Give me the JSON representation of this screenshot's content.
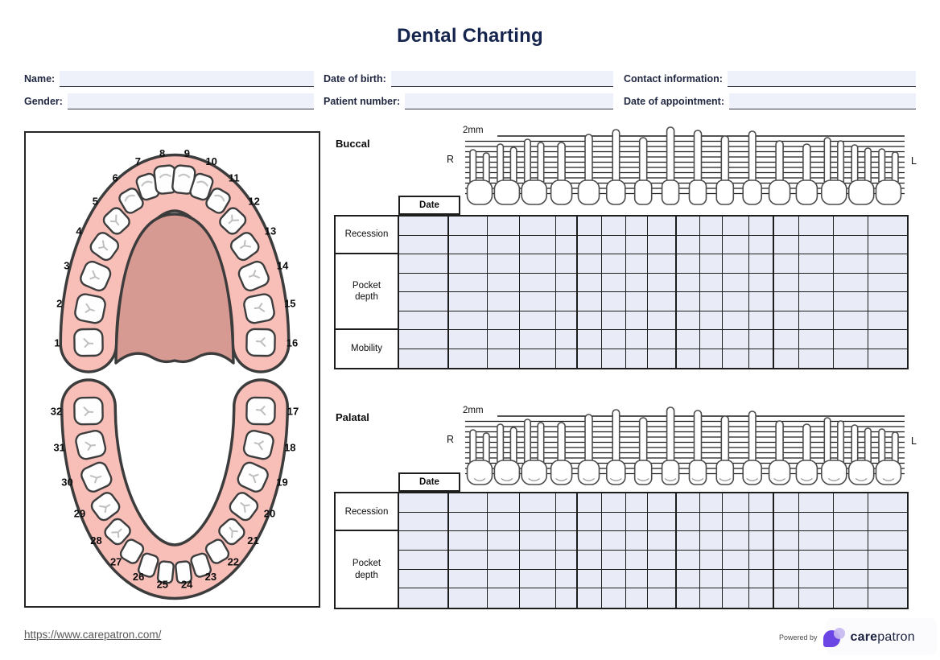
{
  "title": "Dental Charting",
  "patient_fields": [
    {
      "id": "name",
      "label": "Name:",
      "value": ""
    },
    {
      "id": "dob",
      "label": "Date of birth:",
      "value": ""
    },
    {
      "id": "contact",
      "label": "Contact information:",
      "value": ""
    },
    {
      "id": "gender",
      "label": "Gender:",
      "value": ""
    },
    {
      "id": "patient_number",
      "label": "Patient number:",
      "value": ""
    },
    {
      "id": "appointment",
      "label": "Date of appointment:",
      "value": ""
    }
  ],
  "tooth_numbers": {
    "upper": [
      1,
      2,
      3,
      4,
      5,
      6,
      7,
      8,
      9,
      10,
      11,
      12,
      13,
      14,
      15,
      16
    ],
    "lower": [
      32,
      31,
      30,
      29,
      28,
      27,
      26,
      25,
      24,
      23,
      22,
      21,
      20,
      19,
      18,
      17
    ]
  },
  "sections": [
    {
      "id": "buccal",
      "label": "Buccal",
      "scale_label": "2mm",
      "right_label": "R",
      "left_label": "L",
      "date_header": "Date",
      "row_groups": [
        {
          "label": "Recession",
          "rows": 2
        },
        {
          "label": "Pocket depth",
          "rows": 4
        },
        {
          "label": "Mobility",
          "rows": 2
        }
      ],
      "tooth_columns": 16,
      "cell_values": []
    },
    {
      "id": "palatal",
      "label": "Palatal",
      "scale_label": "2mm",
      "right_label": "R",
      "left_label": "L",
      "date_header": "Date",
      "row_groups": [
        {
          "label": "Recession",
          "rows": 2
        },
        {
          "label": "Pocket depth",
          "rows": 4
        }
      ],
      "tooth_columns": 16,
      "cell_values": []
    }
  ],
  "footer": {
    "link": "https://www.carepatron.com/",
    "powered_by": "Powered by",
    "brand_bold": "care",
    "brand_rest": "patron"
  },
  "colors": {
    "title_navy": "#16254e",
    "field_bg": "#eef0fa",
    "cell_bg": "#e9ecf7",
    "gum_pink": "#f8beb8",
    "palate_rose": "#d69a93",
    "brand_purple": "#6b46e5",
    "brand_purple_light": "#c7b9f0",
    "brand_navy": "#1a2240"
  }
}
